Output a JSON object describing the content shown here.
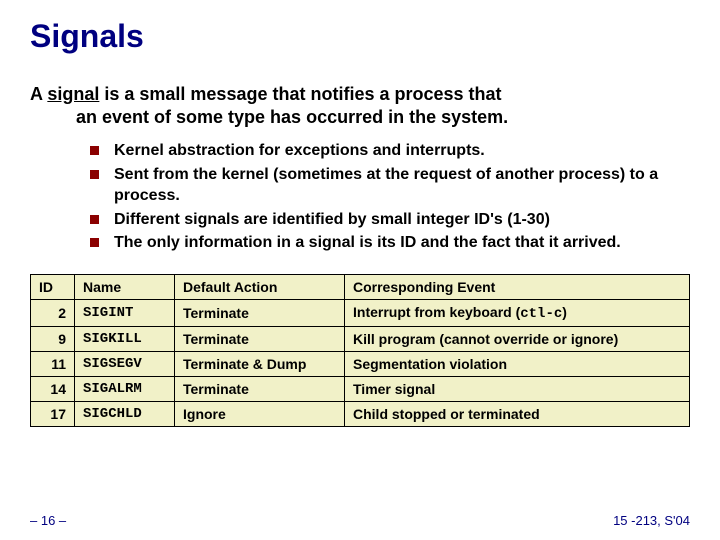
{
  "title": "Signals",
  "main_text": {
    "prefix": "A ",
    "signal_word": "signal",
    "line1_rest": " is a small message that notifies a process that",
    "line2": "an event of some type has occurred in the system."
  },
  "bullets": [
    "Kernel abstraction for exceptions and interrupts.",
    "Sent from the kernel (sometimes at the request of another process) to a process.",
    "Different signals are identified by small integer ID's (1-30)",
    "The only information in a signal is its ID and the fact that it arrived."
  ],
  "table": {
    "headers": [
      "ID",
      "Name",
      "Default Action",
      "Corresponding Event"
    ],
    "rows": [
      {
        "id": "2",
        "name": "SIGINT",
        "action": "Terminate",
        "event_pre": "Interrupt from keyboard (",
        "event_code": "ctl-c",
        "event_post": ")"
      },
      {
        "id": "9",
        "name": "SIGKILL",
        "action": "Terminate",
        "event_pre": "Kill program (cannot override or ignore)",
        "event_code": "",
        "event_post": ""
      },
      {
        "id": "11",
        "name": "SIGSEGV",
        "action": "Terminate & Dump",
        "event_pre": "Segmentation violation",
        "event_code": "",
        "event_post": ""
      },
      {
        "id": "14",
        "name": "SIGALRM",
        "action": "Terminate",
        "event_pre": "Timer signal",
        "event_code": "",
        "event_post": ""
      },
      {
        "id": "17",
        "name": "SIGCHLD",
        "action": "Ignore",
        "event_pre": "Child stopped or terminated",
        "event_code": "",
        "event_post": ""
      }
    ]
  },
  "footer": {
    "left": "– 16 –",
    "right": "15 -213, S'04"
  },
  "colors": {
    "title": "#000080",
    "bullet_marker": "#8b0000",
    "table_bg": "#f1f1c8",
    "border": "#000000",
    "footer": "#000080"
  }
}
